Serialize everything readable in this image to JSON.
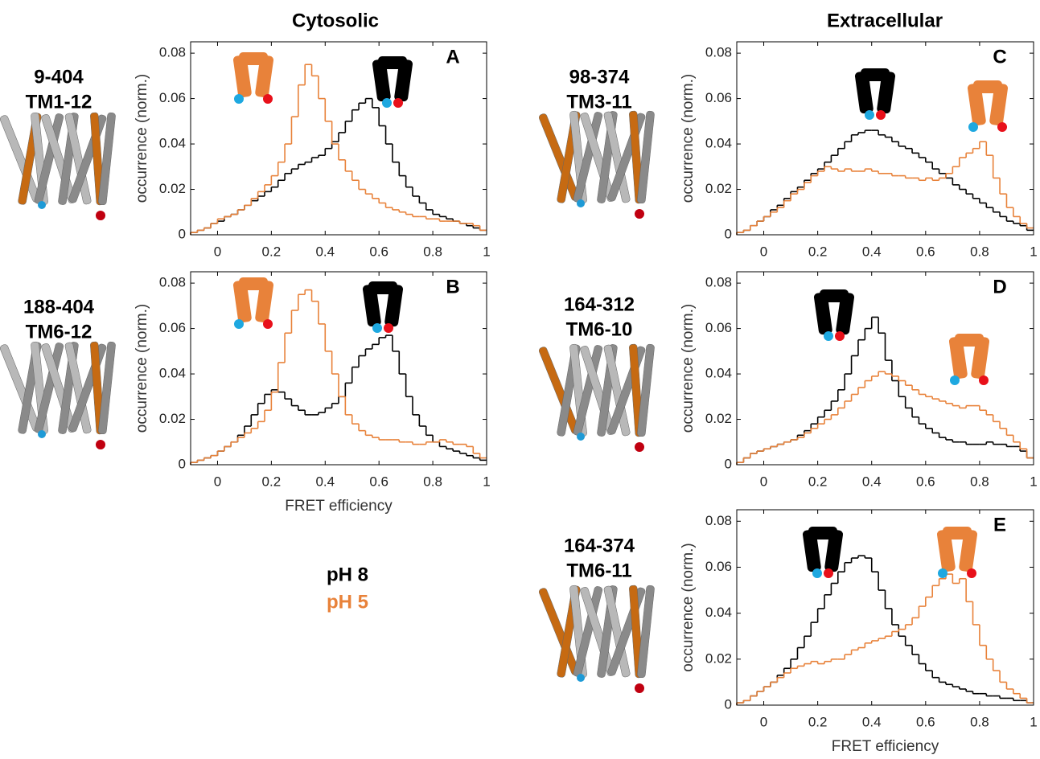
{
  "column_titles": [
    "Cytosolic",
    "Extracellular"
  ],
  "chart_data": [
    {
      "type": "histogram",
      "panel": "A",
      "construct": [
        "9-404",
        "TM1-12"
      ],
      "ylabel": "occurrence (norm.)",
      "bins": [
        -0.1,
        -0.075,
        -0.05,
        -0.025,
        0,
        0.025,
        0.05,
        0.075,
        0.1,
        0.125,
        0.15,
        0.175,
        0.2,
        0.225,
        0.25,
        0.275,
        0.3,
        0.325,
        0.35,
        0.375,
        0.4,
        0.425,
        0.45,
        0.475,
        0.5,
        0.525,
        0.55,
        0.575,
        0.6,
        0.625,
        0.65,
        0.675,
        0.7,
        0.725,
        0.75,
        0.775,
        0.8,
        0.825,
        0.85,
        0.875,
        0.9,
        0.925,
        0.95,
        0.975,
        1
      ],
      "series": [
        {
          "name": "pH 8",
          "color": "#000000",
          "values": [
            0.001,
            0.002,
            0.003,
            0.005,
            0.006,
            0.008,
            0.009,
            0.011,
            0.013,
            0.015,
            0.017,
            0.019,
            0.021,
            0.024,
            0.027,
            0.029,
            0.031,
            0.032,
            0.034,
            0.035,
            0.038,
            0.041,
            0.045,
            0.05,
            0.055,
            0.058,
            0.06,
            0.056,
            0.048,
            0.04,
            0.032,
            0.026,
            0.021,
            0.017,
            0.014,
            0.011,
            0.009,
            0.008,
            0.007,
            0.006,
            0.005,
            0.004,
            0.003,
            0.002
          ]
        },
        {
          "name": "pH 5",
          "color": "#e8823a",
          "values": [
            0.001,
            0.002,
            0.003,
            0.005,
            0.007,
            0.008,
            0.009,
            0.011,
            0.013,
            0.016,
            0.019,
            0.022,
            0.026,
            0.032,
            0.04,
            0.052,
            0.066,
            0.075,
            0.07,
            0.06,
            0.05,
            0.04,
            0.033,
            0.028,
            0.024,
            0.02,
            0.018,
            0.016,
            0.014,
            0.012,
            0.011,
            0.01,
            0.009,
            0.008,
            0.008,
            0.007,
            0.007,
            0.006,
            0.006,
            0.006,
            0.005,
            0.005,
            0.004,
            0.002
          ]
        }
      ],
      "xlim": [
        -0.1,
        1
      ],
      "ylim": [
        0,
        0.085
      ],
      "xticks": [
        0,
        0.2,
        0.4,
        0.6,
        0.8,
        1
      ],
      "yticks": [
        0,
        0.02,
        0.04,
        0.06,
        0.08
      ]
    },
    {
      "type": "histogram",
      "panel": "B",
      "construct": [
        "188-404",
        "TM6-12"
      ],
      "ylabel": "occurrence (norm.)",
      "xlabel": "FRET efficiency",
      "bins": [
        -0.1,
        -0.075,
        -0.05,
        -0.025,
        0,
        0.025,
        0.05,
        0.075,
        0.1,
        0.125,
        0.15,
        0.175,
        0.2,
        0.225,
        0.25,
        0.275,
        0.3,
        0.325,
        0.35,
        0.375,
        0.4,
        0.425,
        0.45,
        0.475,
        0.5,
        0.525,
        0.55,
        0.575,
        0.6,
        0.625,
        0.65,
        0.675,
        0.7,
        0.725,
        0.75,
        0.775,
        0.8,
        0.825,
        0.85,
        0.875,
        0.9,
        0.925,
        0.95,
        0.975,
        1
      ],
      "series": [
        {
          "color": "#000000",
          "values": [
            0.001,
            0.002,
            0.003,
            0.004,
            0.006,
            0.008,
            0.01,
            0.013,
            0.017,
            0.022,
            0.027,
            0.031,
            0.033,
            0.032,
            0.029,
            0.026,
            0.024,
            0.022,
            0.022,
            0.023,
            0.025,
            0.027,
            0.03,
            0.036,
            0.043,
            0.048,
            0.051,
            0.053,
            0.056,
            0.057,
            0.05,
            0.04,
            0.03,
            0.022,
            0.017,
            0.013,
            0.01,
            0.008,
            0.007,
            0.006,
            0.005,
            0.004,
            0.003,
            0.002
          ]
        },
        {
          "color": "#e8823a",
          "values": [
            0.001,
            0.002,
            0.003,
            0.004,
            0.006,
            0.008,
            0.01,
            0.012,
            0.014,
            0.016,
            0.019,
            0.024,
            0.032,
            0.045,
            0.058,
            0.068,
            0.075,
            0.077,
            0.072,
            0.062,
            0.05,
            0.04,
            0.03,
            0.022,
            0.018,
            0.015,
            0.013,
            0.012,
            0.011,
            0.011,
            0.011,
            0.01,
            0.01,
            0.009,
            0.009,
            0.01,
            0.01,
            0.011,
            0.01,
            0.009,
            0.009,
            0.008,
            0.005,
            0.003
          ]
        }
      ],
      "xlim": [
        -0.1,
        1
      ],
      "ylim": [
        0,
        0.085
      ],
      "xticks": [
        0,
        0.2,
        0.4,
        0.6,
        0.8,
        1
      ],
      "yticks": [
        0,
        0.02,
        0.04,
        0.06,
        0.08
      ]
    },
    {
      "type": "histogram",
      "panel": "C",
      "construct": [
        "98-374",
        "TM3-11"
      ],
      "ylabel": "occurrence (norm.)",
      "bins": [
        -0.1,
        -0.075,
        -0.05,
        -0.025,
        0,
        0.025,
        0.05,
        0.075,
        0.1,
        0.125,
        0.15,
        0.175,
        0.2,
        0.225,
        0.25,
        0.275,
        0.3,
        0.325,
        0.35,
        0.375,
        0.4,
        0.425,
        0.45,
        0.475,
        0.5,
        0.525,
        0.55,
        0.575,
        0.6,
        0.625,
        0.65,
        0.675,
        0.7,
        0.725,
        0.75,
        0.775,
        0.8,
        0.825,
        0.85,
        0.875,
        0.9,
        0.925,
        0.95,
        0.975,
        1
      ],
      "series": [
        {
          "color": "#000000",
          "values": [
            0.001,
            0.002,
            0.004,
            0.006,
            0.008,
            0.011,
            0.013,
            0.016,
            0.019,
            0.021,
            0.024,
            0.027,
            0.029,
            0.032,
            0.035,
            0.038,
            0.041,
            0.044,
            0.045,
            0.046,
            0.046,
            0.044,
            0.043,
            0.041,
            0.039,
            0.038,
            0.036,
            0.034,
            0.032,
            0.029,
            0.027,
            0.025,
            0.022,
            0.02,
            0.018,
            0.016,
            0.014,
            0.012,
            0.01,
            0.008,
            0.006,
            0.005,
            0.004,
            0.002
          ]
        },
        {
          "color": "#e8823a",
          "values": [
            0.001,
            0.002,
            0.004,
            0.006,
            0.008,
            0.01,
            0.012,
            0.015,
            0.018,
            0.02,
            0.023,
            0.026,
            0.028,
            0.03,
            0.029,
            0.028,
            0.029,
            0.028,
            0.028,
            0.029,
            0.028,
            0.027,
            0.027,
            0.026,
            0.026,
            0.025,
            0.025,
            0.024,
            0.025,
            0.024,
            0.025,
            0.027,
            0.03,
            0.034,
            0.036,
            0.038,
            0.041,
            0.035,
            0.025,
            0.018,
            0.012,
            0.008,
            0.005,
            0.003
          ]
        }
      ],
      "xlim": [
        -0.1,
        1
      ],
      "ylim": [
        0,
        0.085
      ],
      "xticks": [
        0,
        0.2,
        0.4,
        0.6,
        0.8,
        1
      ],
      "yticks": [
        0,
        0.02,
        0.04,
        0.06,
        0.08
      ]
    },
    {
      "type": "histogram",
      "panel": "D",
      "construct": [
        "164-312",
        "TM6-10"
      ],
      "ylabel": "occurrence (norm.)",
      "bins": [
        -0.1,
        -0.075,
        -0.05,
        -0.025,
        0,
        0.025,
        0.05,
        0.075,
        0.1,
        0.125,
        0.15,
        0.175,
        0.2,
        0.225,
        0.25,
        0.275,
        0.3,
        0.325,
        0.35,
        0.375,
        0.4,
        0.425,
        0.45,
        0.475,
        0.5,
        0.525,
        0.55,
        0.575,
        0.6,
        0.625,
        0.65,
        0.675,
        0.7,
        0.725,
        0.75,
        0.775,
        0.8,
        0.825,
        0.85,
        0.875,
        0.9,
        0.925,
        0.95,
        0.975,
        1
      ],
      "series": [
        {
          "color": "#000000",
          "values": [
            0.001,
            0.003,
            0.005,
            0.006,
            0.007,
            0.008,
            0.009,
            0.01,
            0.011,
            0.013,
            0.015,
            0.018,
            0.021,
            0.024,
            0.028,
            0.033,
            0.04,
            0.048,
            0.055,
            0.06,
            0.065,
            0.058,
            0.046,
            0.037,
            0.03,
            0.025,
            0.021,
            0.018,
            0.016,
            0.014,
            0.012,
            0.011,
            0.01,
            0.01,
            0.009,
            0.009,
            0.009,
            0.01,
            0.009,
            0.009,
            0.008,
            0.008,
            0.006,
            0.003
          ]
        },
        {
          "color": "#e8823a",
          "values": [
            0.001,
            0.003,
            0.005,
            0.006,
            0.007,
            0.008,
            0.009,
            0.01,
            0.011,
            0.012,
            0.014,
            0.016,
            0.018,
            0.02,
            0.022,
            0.025,
            0.028,
            0.031,
            0.034,
            0.037,
            0.039,
            0.041,
            0.04,
            0.039,
            0.037,
            0.035,
            0.033,
            0.031,
            0.03,
            0.029,
            0.028,
            0.027,
            0.026,
            0.025,
            0.026,
            0.026,
            0.024,
            0.022,
            0.019,
            0.016,
            0.013,
            0.01,
            0.007,
            0.003
          ]
        }
      ],
      "xlim": [
        -0.1,
        1
      ],
      "ylim": [
        0,
        0.085
      ],
      "xticks": [
        0,
        0.2,
        0.4,
        0.6,
        0.8,
        1
      ],
      "yticks": [
        0,
        0.02,
        0.04,
        0.06,
        0.08
      ]
    },
    {
      "type": "histogram",
      "panel": "E",
      "construct": [
        "164-374",
        "TM6-11"
      ],
      "ylabel": "occurrence (norm.)",
      "xlabel": "FRET efficiency",
      "bins": [
        -0.1,
        -0.075,
        -0.05,
        -0.025,
        0,
        0.025,
        0.05,
        0.075,
        0.1,
        0.125,
        0.15,
        0.175,
        0.2,
        0.225,
        0.25,
        0.275,
        0.3,
        0.325,
        0.35,
        0.375,
        0.4,
        0.425,
        0.45,
        0.475,
        0.5,
        0.525,
        0.55,
        0.575,
        0.6,
        0.625,
        0.65,
        0.675,
        0.7,
        0.725,
        0.75,
        0.775,
        0.8,
        0.825,
        0.85,
        0.875,
        0.9,
        0.925,
        0.95,
        0.975,
        1
      ],
      "series": [
        {
          "color": "#000000",
          "values": [
            0.001,
            0.002,
            0.004,
            0.006,
            0.008,
            0.01,
            0.013,
            0.016,
            0.02,
            0.025,
            0.03,
            0.036,
            0.042,
            0.048,
            0.053,
            0.058,
            0.062,
            0.064,
            0.065,
            0.064,
            0.058,
            0.05,
            0.042,
            0.035,
            0.03,
            0.026,
            0.022,
            0.018,
            0.015,
            0.012,
            0.01,
            0.009,
            0.008,
            0.007,
            0.006,
            0.005,
            0.005,
            0.004,
            0.004,
            0.003,
            0.003,
            0.002,
            0.002,
            0.001
          ]
        },
        {
          "color": "#e8823a",
          "values": [
            0.001,
            0.002,
            0.004,
            0.006,
            0.008,
            0.01,
            0.012,
            0.014,
            0.016,
            0.017,
            0.018,
            0.019,
            0.018,
            0.019,
            0.02,
            0.02,
            0.022,
            0.024,
            0.025,
            0.027,
            0.028,
            0.029,
            0.03,
            0.032,
            0.033,
            0.035,
            0.038,
            0.043,
            0.047,
            0.052,
            0.055,
            0.057,
            0.053,
            0.055,
            0.045,
            0.035,
            0.026,
            0.02,
            0.015,
            0.01,
            0.007,
            0.005,
            0.003,
            0.001
          ]
        }
      ],
      "xlim": [
        -0.1,
        1
      ],
      "ylim": [
        0,
        0.085
      ],
      "xticks": [
        0,
        0.2,
        0.4,
        0.6,
        0.8,
        1
      ],
      "yticks": [
        0,
        0.02,
        0.04,
        0.06,
        0.08
      ]
    }
  ]
}
